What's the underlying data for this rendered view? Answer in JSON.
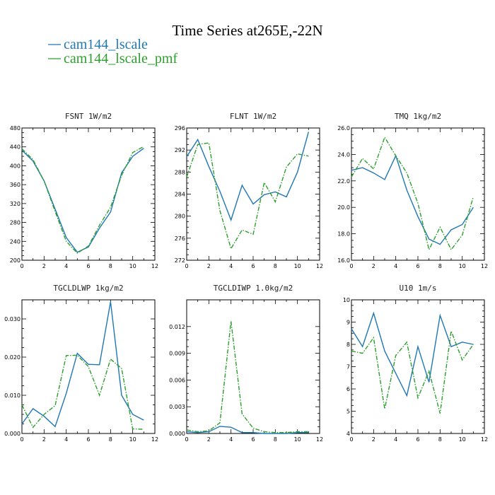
{
  "figure": {
    "title": "Time Series at265E,-22N",
    "legend": [
      {
        "name": "cam144_lscale",
        "color": "#1f77b4",
        "dash": "solid"
      },
      {
        "name": "cam144_lscale_pmf",
        "color": "#2ca02c",
        "dash": "dashdot"
      }
    ]
  },
  "chart_data": [
    {
      "type": "line",
      "title": "FSNT  1W/m2",
      "x": [
        0,
        1,
        2,
        3,
        4,
        5,
        6,
        7,
        8,
        9,
        10,
        11
      ],
      "xlim": [
        0,
        12
      ],
      "xticks": [
        0,
        2,
        4,
        6,
        8,
        10,
        12
      ],
      "ylim": [
        200,
        480
      ],
      "yticks": [
        "200",
        "240",
        "280",
        "320",
        "360",
        "400",
        "440",
        "480"
      ],
      "series": [
        {
          "name": "cam144_lscale",
          "values": [
            433,
            410,
            368,
            308,
            248,
            217,
            228,
            268,
            302,
            385,
            420,
            437
          ]
        },
        {
          "name": "cam144_lscale_pmf",
          "values": [
            436,
            413,
            368,
            303,
            240,
            215,
            230,
            274,
            312,
            380,
            428,
            441
          ]
        }
      ]
    },
    {
      "type": "line",
      "title": "FLNT  1W/m2",
      "x": [
        0,
        1,
        2,
        3,
        4,
        5,
        6,
        7,
        8,
        9,
        10,
        11
      ],
      "xlim": [
        0,
        12
      ],
      "xticks": [
        0,
        2,
        4,
        6,
        8,
        10,
        12
      ],
      "ylim": [
        272,
        296
      ],
      "yticks": [
        "272",
        "276",
        "280",
        "284",
        "288",
        "292",
        "296"
      ],
      "series": [
        {
          "name": "cam144_lscale",
          "values": [
            290.8,
            293.9,
            289.0,
            284.5,
            279.3,
            285.6,
            282.2,
            283.9,
            284.4,
            283.5,
            288.0,
            295.3
          ]
        },
        {
          "name": "cam144_lscale_pmf",
          "values": [
            287.1,
            293.0,
            293.3,
            281.0,
            274.1,
            277.5,
            276.7,
            286.1,
            282.6,
            288.9,
            291.3,
            290.9
          ]
        }
      ]
    },
    {
      "type": "line",
      "title": "TMQ  1kg/m2",
      "x": [
        0,
        1,
        2,
        3,
        4,
        5,
        6,
        7,
        8,
        9,
        10,
        11
      ],
      "xlim": [
        0,
        12
      ],
      "xticks": [
        0,
        2,
        4,
        6,
        8,
        10,
        12
      ],
      "ylim": [
        16.0,
        26.0
      ],
      "yticks": [
        "16.0",
        "18.0",
        "20.0",
        "22.0",
        "24.0",
        "26.0"
      ],
      "series": [
        {
          "name": "cam144_lscale",
          "values": [
            22.8,
            23.0,
            22.6,
            22.1,
            23.9,
            21.3,
            19.3,
            17.6,
            17.2,
            18.3,
            18.7,
            20.0
          ]
        },
        {
          "name": "cam144_lscale_pmf",
          "values": [
            22.3,
            23.7,
            22.9,
            25.3,
            23.9,
            22.6,
            20.3,
            16.8,
            18.5,
            16.8,
            17.9,
            20.8
          ]
        }
      ]
    },
    {
      "type": "line",
      "title": "TGCLDLWP  1kg/m2",
      "x": [
        0,
        1,
        2,
        3,
        4,
        5,
        6,
        7,
        8,
        9,
        10,
        11
      ],
      "xlim": [
        0,
        12
      ],
      "xticks": [
        0,
        2,
        4,
        6,
        8,
        10,
        12
      ],
      "ylim": [
        0,
        0.035
      ],
      "yticks": [
        "0.000",
        "0.010",
        "0.020",
        "0.030"
      ],
      "ytick_values": [
        0,
        0.01,
        0.02,
        0.03
      ],
      "series": [
        {
          "name": "cam144_lscale",
          "values": [
            0.0025,
            0.0065,
            0.0045,
            0.0018,
            0.0105,
            0.021,
            0.0181,
            0.018,
            0.0345,
            0.01,
            0.005,
            0.0035
          ]
        },
        {
          "name": "cam144_lscale_pmf",
          "values": [
            0.0075,
            0.0016,
            0.005,
            0.0073,
            0.0204,
            0.0205,
            0.0175,
            0.01,
            0.0195,
            0.017,
            0.0012,
            0.0011
          ]
        }
      ]
    },
    {
      "type": "line",
      "title": "TGCLDIWP  1.0kg/m2",
      "x": [
        0,
        1,
        2,
        3,
        4,
        5,
        6,
        7,
        8,
        9,
        10,
        11
      ],
      "xlim": [
        0,
        12
      ],
      "xticks": [
        0,
        2,
        4,
        6,
        8,
        10,
        12
      ],
      "ylim": [
        0,
        0.015
      ],
      "yticks": [
        "0.000",
        "0.003",
        "0.006",
        "0.009",
        "0.012"
      ],
      "ytick_values": [
        0,
        0.003,
        0.006,
        0.009,
        0.012
      ],
      "series": [
        {
          "name": "cam144_lscale",
          "values": [
            0.0002,
            0.0001,
            0.0002,
            0.0008,
            0.0007,
            0.0001,
            0.0001,
            0.0,
            0.0,
            0.0,
            0.0001,
            0.0001
          ]
        },
        {
          "name": "cam144_lscale_pmf",
          "values": [
            0.0004,
            0.0002,
            0.0003,
            0.0012,
            0.0126,
            0.0022,
            0.0006,
            0.0002,
            0.0001,
            0.0001,
            0.0002,
            0.0002
          ]
        }
      ]
    },
    {
      "type": "line",
      "title": "U10  1m/s",
      "x": [
        0,
        1,
        2,
        3,
        4,
        5,
        6,
        7,
        8,
        9,
        10,
        11
      ],
      "xlim": [
        0,
        12
      ],
      "xticks": [
        0,
        2,
        4,
        6,
        8,
        10,
        12
      ],
      "ylim": [
        4,
        10
      ],
      "yticks": [
        "4",
        "5",
        "6",
        "7",
        "8",
        "9",
        "10"
      ],
      "series": [
        {
          "name": "cam144_lscale",
          "values": [
            8.7,
            7.9,
            9.4,
            7.7,
            6.7,
            5.7,
            7.9,
            6.3,
            9.3,
            7.9,
            8.1,
            8.0
          ]
        },
        {
          "name": "cam144_lscale_pmf",
          "values": [
            7.7,
            7.6,
            8.3,
            5.1,
            7.5,
            8.1,
            5.6,
            6.8,
            4.9,
            8.6,
            7.3,
            8.0
          ]
        }
      ]
    }
  ]
}
